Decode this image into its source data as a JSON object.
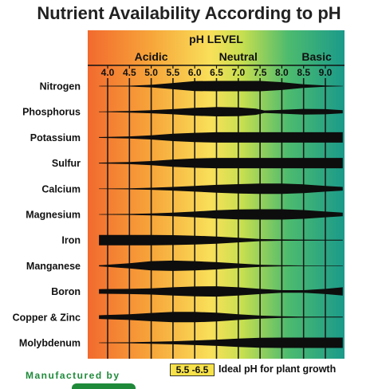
{
  "chart_data": {
    "type": "band",
    "title": "Nutrient Availability According to pH",
    "axis_title": "pH LEVEL",
    "range_labels": [
      "Acidic",
      "Neutral",
      "Basic"
    ],
    "x_ticks": [
      "4.0",
      "4.5",
      "5.0",
      "5.5",
      "6.0",
      "6.5",
      "7.0",
      "7.5",
      "8.0",
      "8.5",
      "9.0"
    ],
    "x_range": [
      4.0,
      9.0
    ],
    "gradient_colors": [
      "#f26a2e",
      "#f7a63a",
      "#f8e05a",
      "#c8df4f",
      "#4dbb6e",
      "#1b9a8a"
    ],
    "nutrients": [
      {
        "name": "Nitrogen",
        "profile": [
          [
            3.8,
            0.04
          ],
          [
            4.5,
            0.08
          ],
          [
            5.0,
            0.25
          ],
          [
            5.5,
            0.6
          ],
          [
            6.0,
            0.95
          ],
          [
            6.5,
            1.0
          ],
          [
            7.0,
            1.0
          ],
          [
            7.5,
            1.0
          ],
          [
            8.0,
            0.75
          ],
          [
            8.5,
            0.35
          ],
          [
            9.0,
            0.1
          ],
          [
            9.4,
            0.04
          ]
        ]
      },
      {
        "name": "Phosphorus",
        "profile": [
          [
            3.8,
            0.05
          ],
          [
            4.5,
            0.15
          ],
          [
            5.0,
            0.3
          ],
          [
            5.5,
            0.5
          ],
          [
            6.0,
            0.75
          ],
          [
            6.5,
            0.9
          ],
          [
            7.0,
            0.85
          ],
          [
            7.4,
            0.6
          ],
          [
            7.6,
            0.25
          ],
          [
            7.8,
            0.3
          ],
          [
            8.5,
            0.55
          ],
          [
            9.0,
            0.5
          ],
          [
            9.4,
            0.3
          ]
        ]
      },
      {
        "name": "Potassium",
        "profile": [
          [
            3.8,
            0.08
          ],
          [
            4.5,
            0.2
          ],
          [
            5.0,
            0.4
          ],
          [
            5.5,
            0.7
          ],
          [
            6.0,
            0.9
          ],
          [
            6.5,
            1.0
          ],
          [
            7.0,
            1.0
          ],
          [
            8.0,
            1.0
          ],
          [
            9.0,
            1.0
          ],
          [
            9.4,
            1.0
          ]
        ]
      },
      {
        "name": "Sulfur",
        "profile": [
          [
            3.8,
            0.08
          ],
          [
            4.5,
            0.2
          ],
          [
            5.0,
            0.4
          ],
          [
            5.5,
            0.7
          ],
          [
            6.0,
            0.9
          ],
          [
            6.5,
            1.0
          ],
          [
            7.0,
            1.0
          ],
          [
            8.0,
            1.0
          ],
          [
            9.0,
            1.0
          ],
          [
            9.4,
            1.0
          ]
        ]
      },
      {
        "name": "Calcium",
        "profile": [
          [
            3.8,
            0.04
          ],
          [
            4.5,
            0.1
          ],
          [
            5.0,
            0.2
          ],
          [
            5.5,
            0.35
          ],
          [
            6.0,
            0.55
          ],
          [
            6.5,
            0.75
          ],
          [
            7.0,
            0.9
          ],
          [
            7.5,
            1.0
          ],
          [
            8.0,
            1.0
          ],
          [
            8.5,
            0.85
          ],
          [
            9.0,
            0.55
          ],
          [
            9.4,
            0.35
          ]
        ]
      },
      {
        "name": "Magnesium",
        "profile": [
          [
            3.8,
            0.04
          ],
          [
            4.5,
            0.1
          ],
          [
            5.0,
            0.2
          ],
          [
            5.5,
            0.35
          ],
          [
            6.0,
            0.55
          ],
          [
            6.5,
            0.8
          ],
          [
            7.0,
            0.95
          ],
          [
            7.5,
            1.0
          ],
          [
            8.0,
            1.0
          ],
          [
            8.5,
            0.85
          ],
          [
            9.0,
            0.55
          ],
          [
            9.4,
            0.35
          ]
        ]
      },
      {
        "name": "Iron",
        "profile": [
          [
            3.8,
            1.0
          ],
          [
            4.5,
            1.0
          ],
          [
            5.0,
            1.0
          ],
          [
            5.5,
            0.95
          ],
          [
            6.0,
            0.85
          ],
          [
            6.5,
            0.7
          ],
          [
            7.0,
            0.45
          ],
          [
            7.5,
            0.2
          ],
          [
            8.0,
            0.12
          ],
          [
            8.5,
            0.1
          ],
          [
            9.0,
            0.08
          ],
          [
            9.4,
            0.08
          ]
        ]
      },
      {
        "name": "Manganese",
        "profile": [
          [
            3.8,
            0.1
          ],
          [
            4.5,
            0.5
          ],
          [
            5.0,
            0.9
          ],
          [
            5.5,
            1.0
          ],
          [
            6.0,
            0.9
          ],
          [
            6.5,
            0.7
          ],
          [
            7.0,
            0.45
          ],
          [
            7.5,
            0.2
          ],
          [
            8.0,
            0.1
          ],
          [
            8.5,
            0.06
          ],
          [
            9.0,
            0.04
          ],
          [
            9.4,
            0.04
          ]
        ]
      },
      {
        "name": "Boron",
        "profile": [
          [
            3.8,
            0.45
          ],
          [
            4.5,
            0.5
          ],
          [
            5.0,
            0.6
          ],
          [
            5.5,
            0.8
          ],
          [
            6.0,
            0.95
          ],
          [
            6.5,
            1.0
          ],
          [
            7.0,
            0.8
          ],
          [
            7.5,
            0.5
          ],
          [
            8.0,
            0.25
          ],
          [
            8.5,
            0.25
          ],
          [
            9.0,
            0.5
          ],
          [
            9.4,
            0.8
          ]
        ]
      },
      {
        "name": "Copper & Zinc",
        "profile": [
          [
            3.8,
            0.35
          ],
          [
            4.5,
            0.55
          ],
          [
            5.0,
            0.8
          ],
          [
            5.5,
            1.0
          ],
          [
            6.0,
            1.0
          ],
          [
            6.5,
            0.85
          ],
          [
            7.0,
            0.55
          ],
          [
            7.5,
            0.3
          ],
          [
            8.0,
            0.15
          ],
          [
            8.5,
            0.1
          ],
          [
            9.0,
            0.08
          ],
          [
            9.4,
            0.08
          ]
        ]
      },
      {
        "name": "Molybdenum",
        "profile": [
          [
            3.8,
            0.05
          ],
          [
            4.5,
            0.1
          ],
          [
            5.0,
            0.2
          ],
          [
            5.5,
            0.3
          ],
          [
            6.0,
            0.45
          ],
          [
            6.5,
            0.6
          ],
          [
            7.0,
            0.8
          ],
          [
            7.5,
            0.95
          ],
          [
            8.0,
            1.0
          ],
          [
            8.5,
            1.0
          ],
          [
            9.0,
            1.0
          ],
          [
            9.4,
            1.0
          ]
        ]
      }
    ],
    "legend": {
      "range": "5.5 -6.5",
      "label": "Ideal pH for plant growth"
    }
  },
  "footer": {
    "manufacturer": "Manufactured by"
  }
}
